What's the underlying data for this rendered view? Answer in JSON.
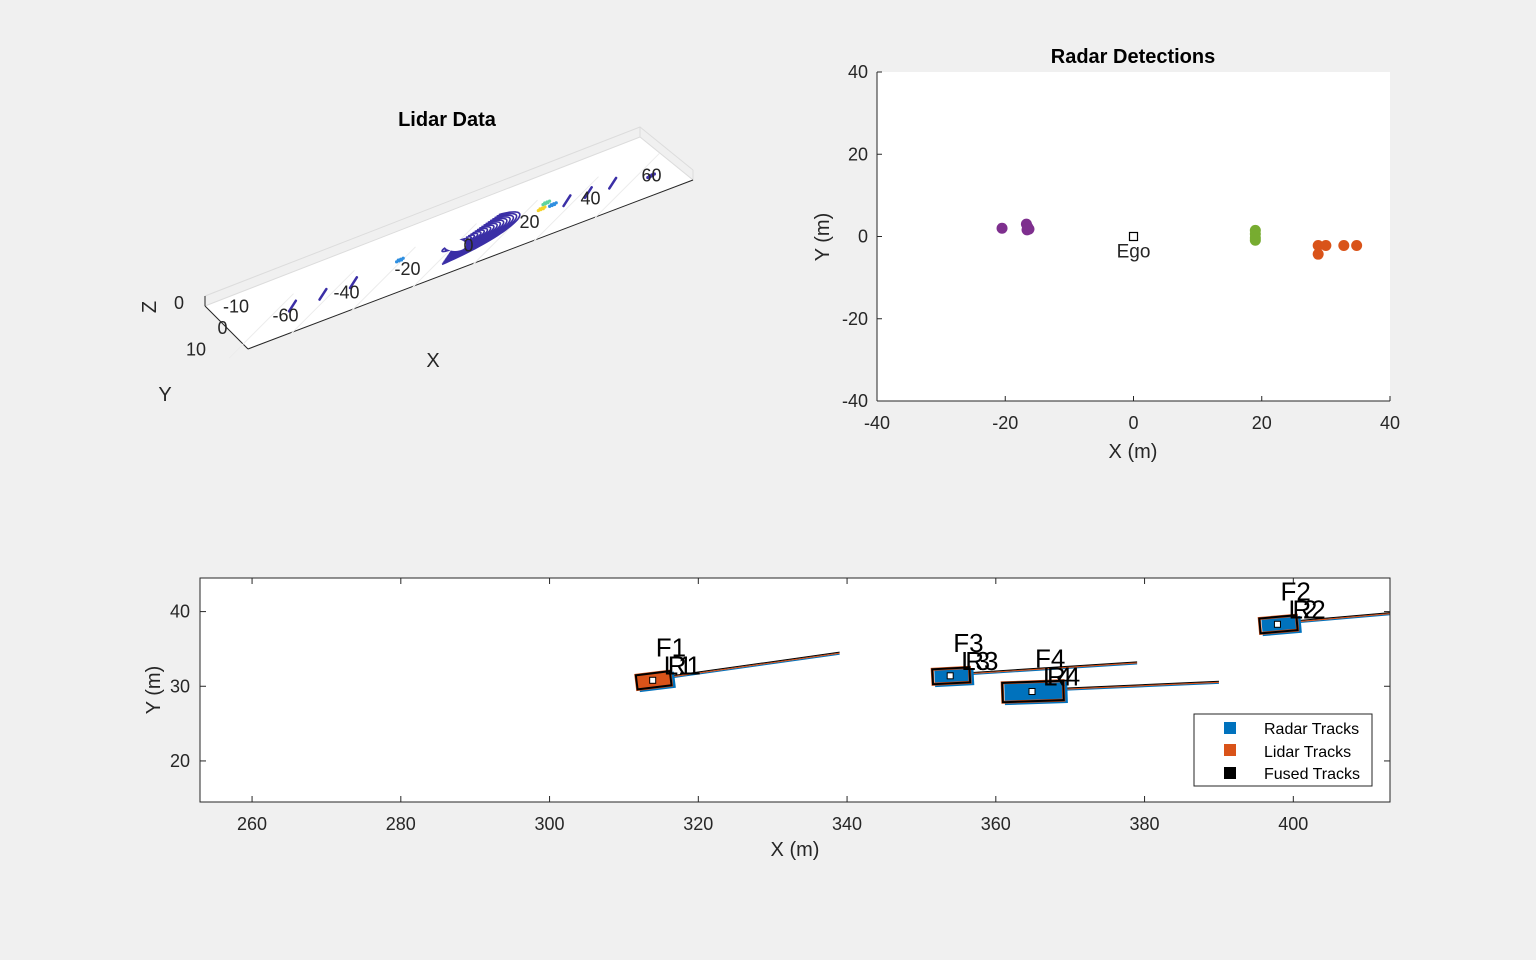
{
  "figure": {
    "background": "#f0f0f0"
  },
  "chart_data": [
    {
      "type": "scatter",
      "title": "Lidar Data",
      "xlabel": "X",
      "ylabel": "Y",
      "zlabel": "Z",
      "x_ticks": [
        "-60",
        "-40",
        "-20",
        "0",
        "20",
        "40",
        "60"
      ],
      "y_ticks": [
        "-10",
        "0",
        "10"
      ],
      "z_ticks": [
        "0"
      ],
      "projection": "3d",
      "colormap": "parula",
      "points_description_colors": [
        "#3b2fa6",
        "#2f8fe0",
        "#f5d327",
        "#5fd3a0"
      ],
      "ground_rings": {
        "center_x": 0,
        "center_y": 0,
        "count": 20,
        "max_radius": 22
      },
      "objects": [
        {
          "x": 30,
          "y": 3,
          "z": 1.5,
          "color": "#f5d327"
        },
        {
          "x": 28,
          "y": -2,
          "z": 1.0,
          "color": "#5fd3a0"
        },
        {
          "x": 33,
          "y": 2,
          "z": 1.2,
          "color": "#2f8fe0"
        },
        {
          "x": -20,
          "y": -2,
          "z": 0.8,
          "color": "#2f8fe0"
        },
        {
          "x": 68,
          "y": 6,
          "z": 0.5,
          "color": "#3b2fa6"
        }
      ]
    },
    {
      "type": "scatter",
      "title": "Radar Detections",
      "xlabel": "X (m)",
      "ylabel": "Y (m)",
      "xlim": [
        -40,
        40
      ],
      "ylim": [
        -40,
        40
      ],
      "x_ticks": [
        "-40",
        "-20",
        "0",
        "20",
        "40"
      ],
      "y_ticks": [
        "40",
        "20",
        "0",
        "-20",
        "-40"
      ],
      "annotation": "Ego",
      "ego": {
        "x": 0,
        "y": 0
      },
      "series": [
        {
          "color": "#7e2f8e",
          "x": [
            -20.5,
            -16.7,
            -16.5,
            -16.3,
            -16.6
          ],
          "y": [
            2.0,
            3.0,
            2.3,
            1.8,
            1.6
          ]
        },
        {
          "color": "#77ac30",
          "x": [
            19.0,
            19.0,
            19.0,
            19.0
          ],
          "y": [
            1.5,
            0.6,
            -0.3,
            -0.9
          ]
        },
        {
          "color": "#d95319",
          "x": [
            28.8,
            28.8,
            30.0,
            32.8,
            34.8
          ],
          "y": [
            -2.2,
            -4.3,
            -2.2,
            -2.2,
            -2.2
          ]
        }
      ]
    },
    {
      "type": "scatter",
      "title": "",
      "xlabel": "X (m)",
      "ylabel": "Y (m)",
      "xlim": [
        253,
        413
      ],
      "ylim": [
        14.5,
        44.5
      ],
      "x_ticks": [
        "260",
        "280",
        "300",
        "320",
        "340",
        "360",
        "380",
        "400"
      ],
      "y_ticks": [
        "40",
        "30",
        "20"
      ],
      "legend": {
        "position": "bottom-right",
        "entries": [
          {
            "name": "Radar Tracks",
            "color": "#0072bd"
          },
          {
            "name": "Lidar Tracks",
            "color": "#d95319"
          },
          {
            "name": "Fused Tracks",
            "color": "#000000"
          }
        ]
      },
      "tracks": [
        {
          "fused": "F1",
          "radar": "R1",
          "lidar": "L1",
          "x": 314,
          "y": 30.8,
          "heading_deg": 7,
          "length": 4.6,
          "width": 1.9,
          "history_end_x": 339,
          "history_end_y": 34.3
        },
        {
          "fused": "F2",
          "radar": "R2",
          "lidar": "L2",
          "x": 398,
          "y": 38.3,
          "heading_deg": 5,
          "length": 5.0,
          "width": 2.0,
          "history_end_x": 413,
          "history_end_y": 39.6
        },
        {
          "fused": "F3",
          "radar": "R3",
          "lidar": "L3",
          "x": 354,
          "y": 31.4,
          "heading_deg": 3,
          "length": 5.0,
          "width": 2.0,
          "history_end_x": 379,
          "history_end_y": 33.0
        },
        {
          "fused": "F4",
          "radar": "R4",
          "lidar": "L4",
          "x": 365,
          "y": 29.3,
          "heading_deg": 2,
          "length": 8.2,
          "width": 2.6,
          "history_end_x": 390,
          "history_end_y": 30.4
        }
      ]
    }
  ]
}
